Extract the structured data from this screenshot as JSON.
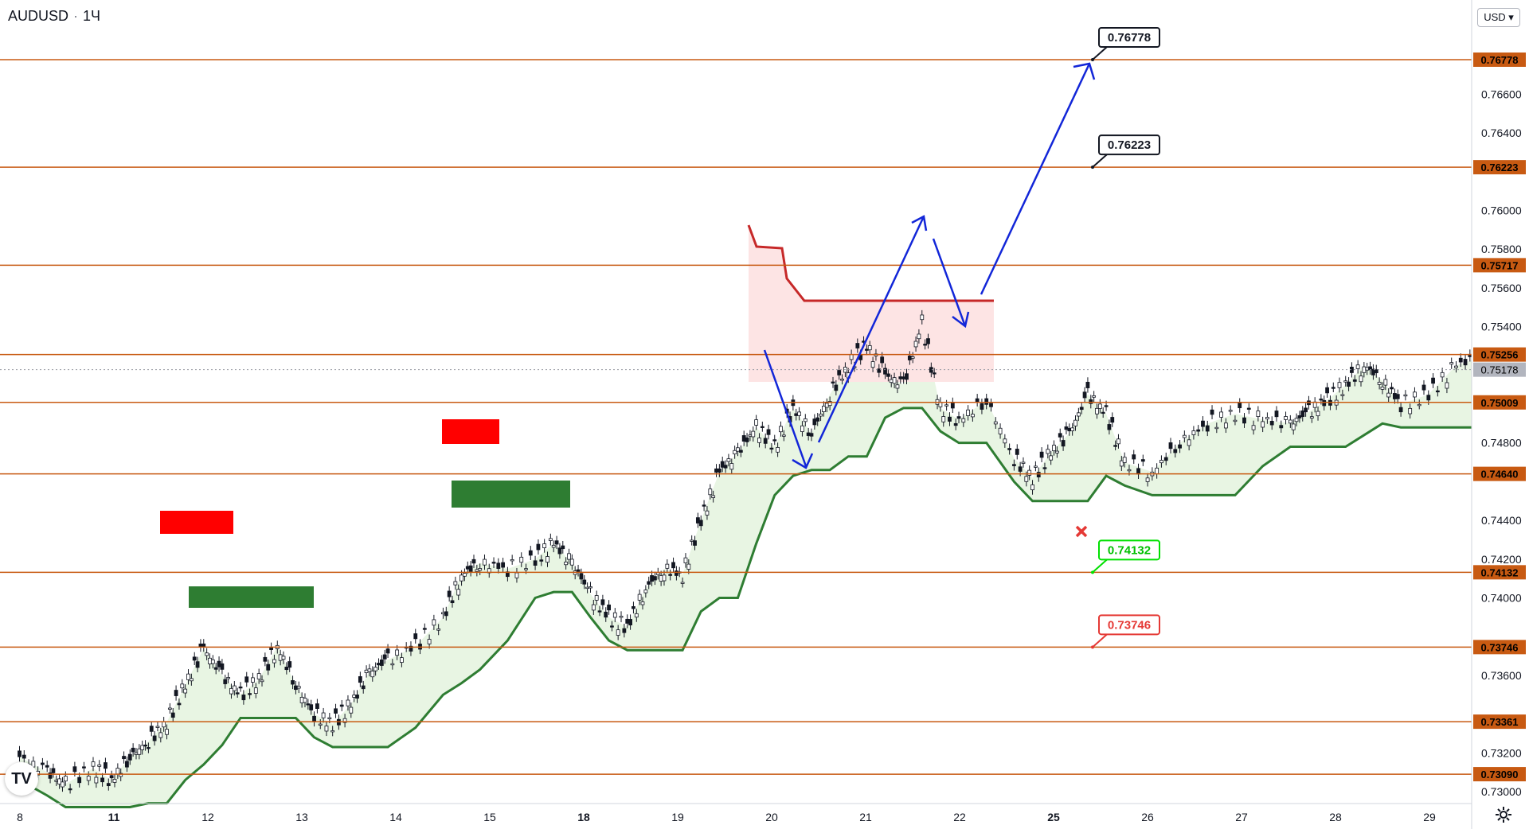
{
  "header": {
    "symbol": "AUDUSD",
    "interval": "1Ч",
    "currency_button": "USD"
  },
  "colors": {
    "level_line": "#c85a12",
    "green": "#2e7d32",
    "red": "#ff0000",
    "blue": "#1226d8",
    "band_fill": "#e8f5e3",
    "red_fill": "#fde4e4"
  },
  "icons": {
    "logo": "tradingview-logo-icon",
    "settings": "gear-icon",
    "stop": "x-mark-icon"
  },
  "chart_data": {
    "type": "candlestick",
    "ylim": [
      0.73,
      0.771
    ],
    "y_ticks": [
      "0.76600",
      "0.76400",
      "0.76000",
      "0.75800",
      "0.75600",
      "0.75400",
      "0.74800",
      "0.74400",
      "0.74200",
      "0.74000",
      "0.73600",
      "0.73200",
      "0.73000"
    ],
    "x_ticks": [
      {
        "label": "8",
        "day": 0
      },
      {
        "label": "11",
        "day": 1
      },
      {
        "label": "12",
        "day": 2
      },
      {
        "label": "13",
        "day": 3
      },
      {
        "label": "14",
        "day": 4
      },
      {
        "label": "15",
        "day": 5
      },
      {
        "label": "18",
        "day": 6
      },
      {
        "label": "19",
        "day": 7
      },
      {
        "label": "20",
        "day": 8
      },
      {
        "label": "21",
        "day": 9
      },
      {
        "label": "22",
        "day": 10
      },
      {
        "label": "25",
        "day": 11
      },
      {
        "label": "26",
        "day": 12
      },
      {
        "label": "27",
        "day": 13
      },
      {
        "label": "28",
        "day": 14
      },
      {
        "label": "29",
        "day": 15
      }
    ],
    "levels": [
      {
        "label": "0.76778",
        "value": 0.76778
      },
      {
        "label": "0.76223",
        "value": 0.76223
      },
      {
        "label": "0.75717",
        "value": 0.75717
      },
      {
        "label": "0.75256",
        "value": 0.75256
      },
      {
        "label": "0.75009",
        "value": 0.75009
      },
      {
        "label": "0.74640",
        "value": 0.7464
      },
      {
        "label": "0.74132",
        "value": 0.74132
      },
      {
        "label": "0.73746",
        "value": 0.73746
      },
      {
        "label": "0.73361",
        "value": 0.73361
      },
      {
        "label": "0.73090",
        "value": 0.7309
      }
    ],
    "current_price": {
      "label": "0.75178",
      "value": 0.75178
    },
    "callouts": [
      {
        "label": "0.76778",
        "value": 0.76778,
        "style": "black"
      },
      {
        "label": "0.76223",
        "value": 0.76223,
        "style": "black"
      },
      {
        "label": "0.74132",
        "value": 0.74132,
        "style": "green"
      },
      {
        "label": "0.73746",
        "value": 0.73746,
        "style": "red"
      }
    ],
    "path_close": [
      [
        0.0,
        0.7318
      ],
      [
        0.3,
        0.731
      ],
      [
        0.5,
        0.7304
      ],
      [
        0.8,
        0.7312
      ],
      [
        1.0,
        0.7306
      ],
      [
        1.2,
        0.7318
      ],
      [
        1.4,
        0.7326
      ],
      [
        1.6,
        0.7336
      ],
      [
        1.8,
        0.7355
      ],
      [
        2.0,
        0.7374
      ],
      [
        2.2,
        0.736
      ],
      [
        2.4,
        0.735
      ],
      [
        2.6,
        0.7358
      ],
      [
        2.8,
        0.7375
      ],
      [
        3.0,
        0.7355
      ],
      [
        3.2,
        0.734
      ],
      [
        3.4,
        0.7335
      ],
      [
        3.6,
        0.7345
      ],
      [
        3.8,
        0.7362
      ],
      [
        4.0,
        0.7368
      ],
      [
        4.3,
        0.7375
      ],
      [
        4.6,
        0.739
      ],
      [
        4.8,
        0.7412
      ],
      [
        5.0,
        0.7418
      ],
      [
        5.3,
        0.7415
      ],
      [
        5.6,
        0.742
      ],
      [
        5.8,
        0.7428
      ],
      [
        6.0,
        0.7418
      ],
      [
        6.2,
        0.7402
      ],
      [
        6.4,
        0.739
      ],
      [
        6.6,
        0.7385
      ],
      [
        6.8,
        0.7405
      ],
      [
        7.0,
        0.7415
      ],
      [
        7.2,
        0.7412
      ],
      [
        7.4,
        0.744
      ],
      [
        7.6,
        0.7465
      ],
      [
        7.8,
        0.7475
      ],
      [
        8.0,
        0.7488
      ],
      [
        8.2,
        0.7478
      ],
      [
        8.4,
        0.7498
      ],
      [
        8.6,
        0.7485
      ],
      [
        8.8,
        0.7505
      ],
      [
        9.0,
        0.752
      ],
      [
        9.2,
        0.753
      ],
      [
        9.4,
        0.7515
      ],
      [
        9.6,
        0.751
      ],
      [
        9.8,
        0.7542
      ],
      [
        10.0,
        0.7498
      ],
      [
        10.2,
        0.7492
      ],
      [
        10.5,
        0.7502
      ],
      [
        10.8,
        0.7472
      ],
      [
        11.0,
        0.7462
      ],
      [
        11.2,
        0.7475
      ],
      [
        11.4,
        0.7485
      ],
      [
        11.6,
        0.7505
      ],
      [
        11.8,
        0.7495
      ],
      [
        12.0,
        0.747
      ],
      [
        12.3,
        0.7465
      ],
      [
        12.6,
        0.748
      ],
      [
        12.9,
        0.749
      ],
      [
        13.2,
        0.7495
      ],
      [
        13.5,
        0.7492
      ],
      [
        13.8,
        0.749
      ],
      [
        14.0,
        0.7496
      ],
      [
        14.2,
        0.7502
      ],
      [
        14.4,
        0.751
      ],
      [
        14.6,
        0.752
      ],
      [
        14.8,
        0.7512
      ],
      [
        15.0,
        0.75
      ],
      [
        15.3,
        0.7505
      ],
      [
        15.6,
        0.752
      ],
      [
        15.9,
        0.7525
      ],
      [
        16.2,
        0.751
      ],
      [
        16.5,
        0.7505
      ],
      [
        16.8,
        0.75
      ],
      [
        17.0,
        0.7515
      ],
      [
        17.3,
        0.752
      ],
      [
        17.6,
        0.7525
      ],
      [
        17.8,
        0.7505
      ],
      [
        18.0,
        0.749
      ],
      [
        18.3,
        0.75
      ],
      [
        18.6,
        0.751
      ],
      [
        18.8,
        0.7515
      ]
    ],
    "series": [
      {
        "values_ref": "path_close",
        "kind": "candles"
      }
    ]
  }
}
